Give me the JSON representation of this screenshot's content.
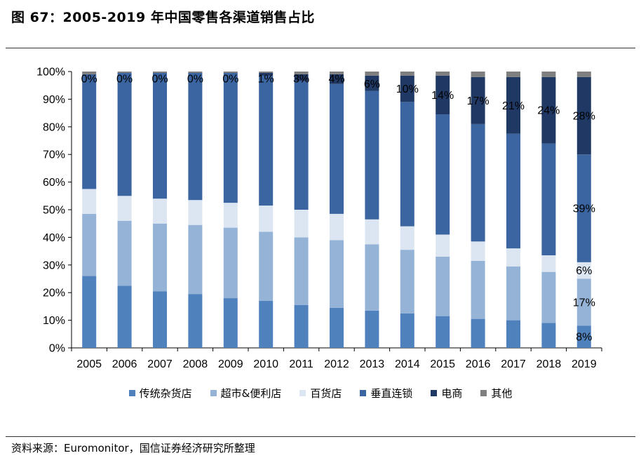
{
  "title": "图 67：2005-2019 年中国零售各渠道销售占比",
  "source": "资料来源：Euromonitor，国信证券经济研究所整理",
  "chart_data": {
    "type": "bar",
    "stacked": true,
    "percent": true,
    "categories": [
      "2005",
      "2006",
      "2007",
      "2008",
      "2009",
      "2010",
      "2011",
      "2012",
      "2013",
      "2014",
      "2015",
      "2016",
      "2017",
      "2018",
      "2019"
    ],
    "ylim": [
      0,
      100
    ],
    "yticks": [
      "0%",
      "10%",
      "20%",
      "30%",
      "40%",
      "50%",
      "60%",
      "70%",
      "80%",
      "90%",
      "100%"
    ],
    "grid": false,
    "legend_position": "bottom",
    "series": [
      {
        "name": "传统杂货店",
        "color": "#4f81bd",
        "values": [
          26,
          22.5,
          20.5,
          19.5,
          18,
          17,
          15.5,
          14.5,
          13.5,
          12.5,
          11.5,
          10.5,
          10,
          9,
          8
        ]
      },
      {
        "name": "超市&便利店",
        "color": "#95b3d7",
        "values": [
          22.5,
          23.5,
          24.5,
          25,
          25.5,
          25,
          24.5,
          24.5,
          24,
          23,
          21.5,
          21,
          19.5,
          18.5,
          17
        ]
      },
      {
        "name": "百货店",
        "color": "#dce6f2",
        "values": [
          9,
          9,
          9,
          9,
          9,
          9.5,
          10,
          9.5,
          9,
          8.5,
          8,
          7,
          6.5,
          6,
          6
        ]
      },
      {
        "name": "垂直连锁",
        "color": "#3a65a0",
        "values": [
          41.5,
          44.5,
          45.5,
          46,
          47,
          47,
          46.5,
          47,
          46.5,
          45,
          43.5,
          42.5,
          41.5,
          40.5,
          39
        ]
      },
      {
        "name": "电商",
        "color": "#1f3864",
        "values": [
          0,
          0,
          0,
          0,
          0,
          1,
          2.5,
          3.5,
          5.5,
          9.5,
          14,
          17,
          20.5,
          24,
          28
        ]
      },
      {
        "name": "其他",
        "color": "#7f7f7f",
        "values": [
          1,
          0.5,
          0.5,
          0.5,
          0.5,
          0.5,
          1,
          1,
          1.5,
          1.5,
          1.5,
          2,
          2,
          2,
          2
        ]
      }
    ],
    "data_labels": [
      {
        "series": "电商",
        "labels": [
          "0%",
          "0%",
          "0%",
          "0%",
          "0%",
          "1%",
          "3%",
          "4%",
          "6%",
          "10%",
          "14%",
          "17%",
          "21%",
          "24%",
          "28%"
        ]
      },
      {
        "series": "垂直连锁",
        "category": "2019",
        "label": "39%"
      },
      {
        "series": "百货店",
        "category": "2019",
        "label": "6%"
      },
      {
        "series": "超市&便利店",
        "category": "2019",
        "label": "17%"
      },
      {
        "series": "传统杂货店",
        "category": "2019",
        "label": "8%"
      }
    ]
  }
}
